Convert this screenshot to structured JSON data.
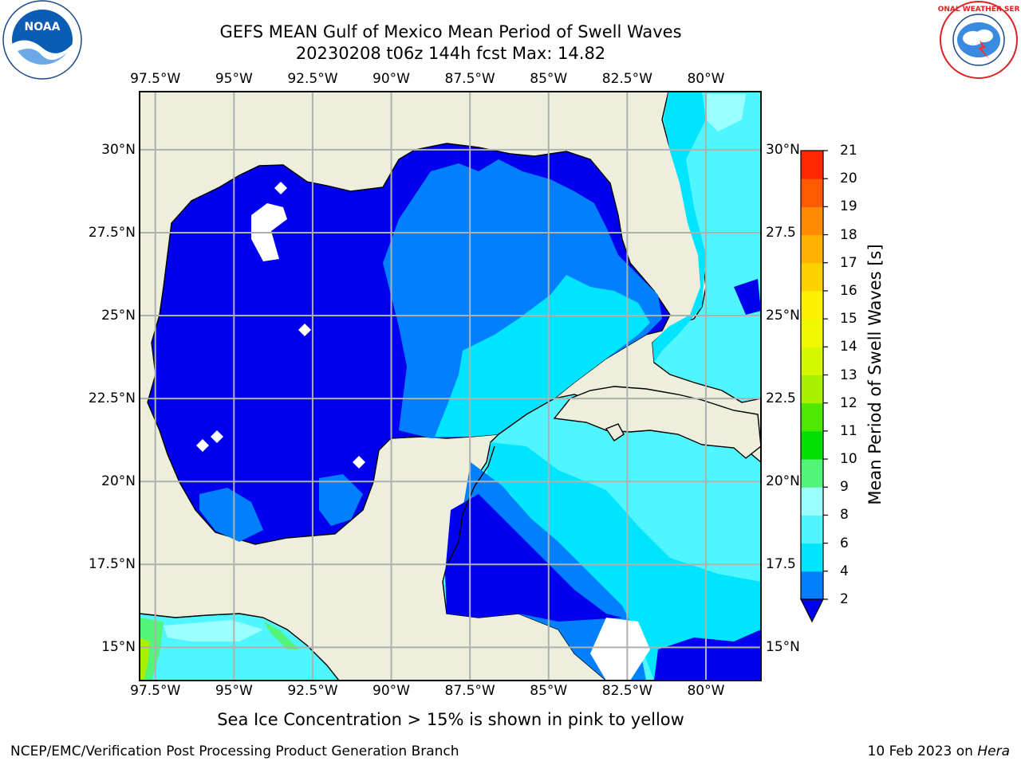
{
  "title_line1": "GEFS MEAN Gulf of Mexico Mean Period of Swell Waves",
  "title_line2": "20230208 t06z 144h fcst   Max: 14.82",
  "logos": {
    "left": "noaa-logo",
    "right": "nws-logo",
    "noaa_text": "NOAA",
    "nws_text": "NATIONAL WEATHER SERVICE"
  },
  "chart_data": {
    "type": "heatmap",
    "variable": "Mean Period of Swell Waves",
    "units": "s",
    "max": 14.82,
    "x_axis": {
      "range": [
        -98.0,
        -78.25
      ],
      "ticks": [
        -97.5,
        -95,
        -92.5,
        -90,
        -87.5,
        -85,
        -82.5,
        -80
      ],
      "tick_labels": [
        "97.5°W",
        "95°W",
        "92.5°W",
        "90°W",
        "87.5°W",
        "85°W",
        "82.5°W",
        "80°W"
      ]
    },
    "y_axis": {
      "range": [
        14.0,
        31.75
      ],
      "ticks": [
        15,
        17.5,
        20,
        22.5,
        25,
        27.5,
        30
      ],
      "tick_labels_left": [
        "15°N",
        "17.5°N",
        "20°N",
        "22.5°N",
        "25°N",
        "27.5°N",
        "30°N"
      ],
      "tick_labels_right": [
        "15°N",
        "17.5",
        "20°N",
        "22.5",
        "25°N",
        "27.5",
        "30°N"
      ]
    },
    "grid": true,
    "colorbar": {
      "label": "Mean Period of Swell Waves [s]",
      "levels": [
        2,
        4,
        6,
        8,
        9,
        10,
        11,
        12,
        13,
        14,
        15,
        16,
        17,
        18,
        19,
        20,
        21
      ],
      "tick_labels": [
        "2",
        "4",
        "6",
        "8",
        "9",
        "10",
        "11",
        "12",
        "13",
        "14",
        "15",
        "16",
        "17",
        "18",
        "19",
        "20",
        "21"
      ],
      "colors": [
        "#0080ff",
        "#00e5ff",
        "#50f6ff",
        "#9cffff",
        "#50f57a",
        "#00e000",
        "#4ce800",
        "#a8f000",
        "#d4f800",
        "#f0f800",
        "#fff000",
        "#ffd000",
        "#ffb000",
        "#ff8c00",
        "#ff5a00",
        "#ff2800"
      ],
      "under_color": "#0000ee",
      "extend": "min"
    },
    "colors": {
      "land": "#eeeedc",
      "no_data": "#ffffff",
      "grid": "#b0b0b0",
      "coast": "#000000"
    }
  },
  "note": "Sea Ice Concentration > 15% is shown in pink to yellow",
  "footer": {
    "left": "NCEP/EMC/Verification Post Processing Product Generation Branch",
    "date": "10 Feb 2023 on ",
    "host": "Hera"
  }
}
